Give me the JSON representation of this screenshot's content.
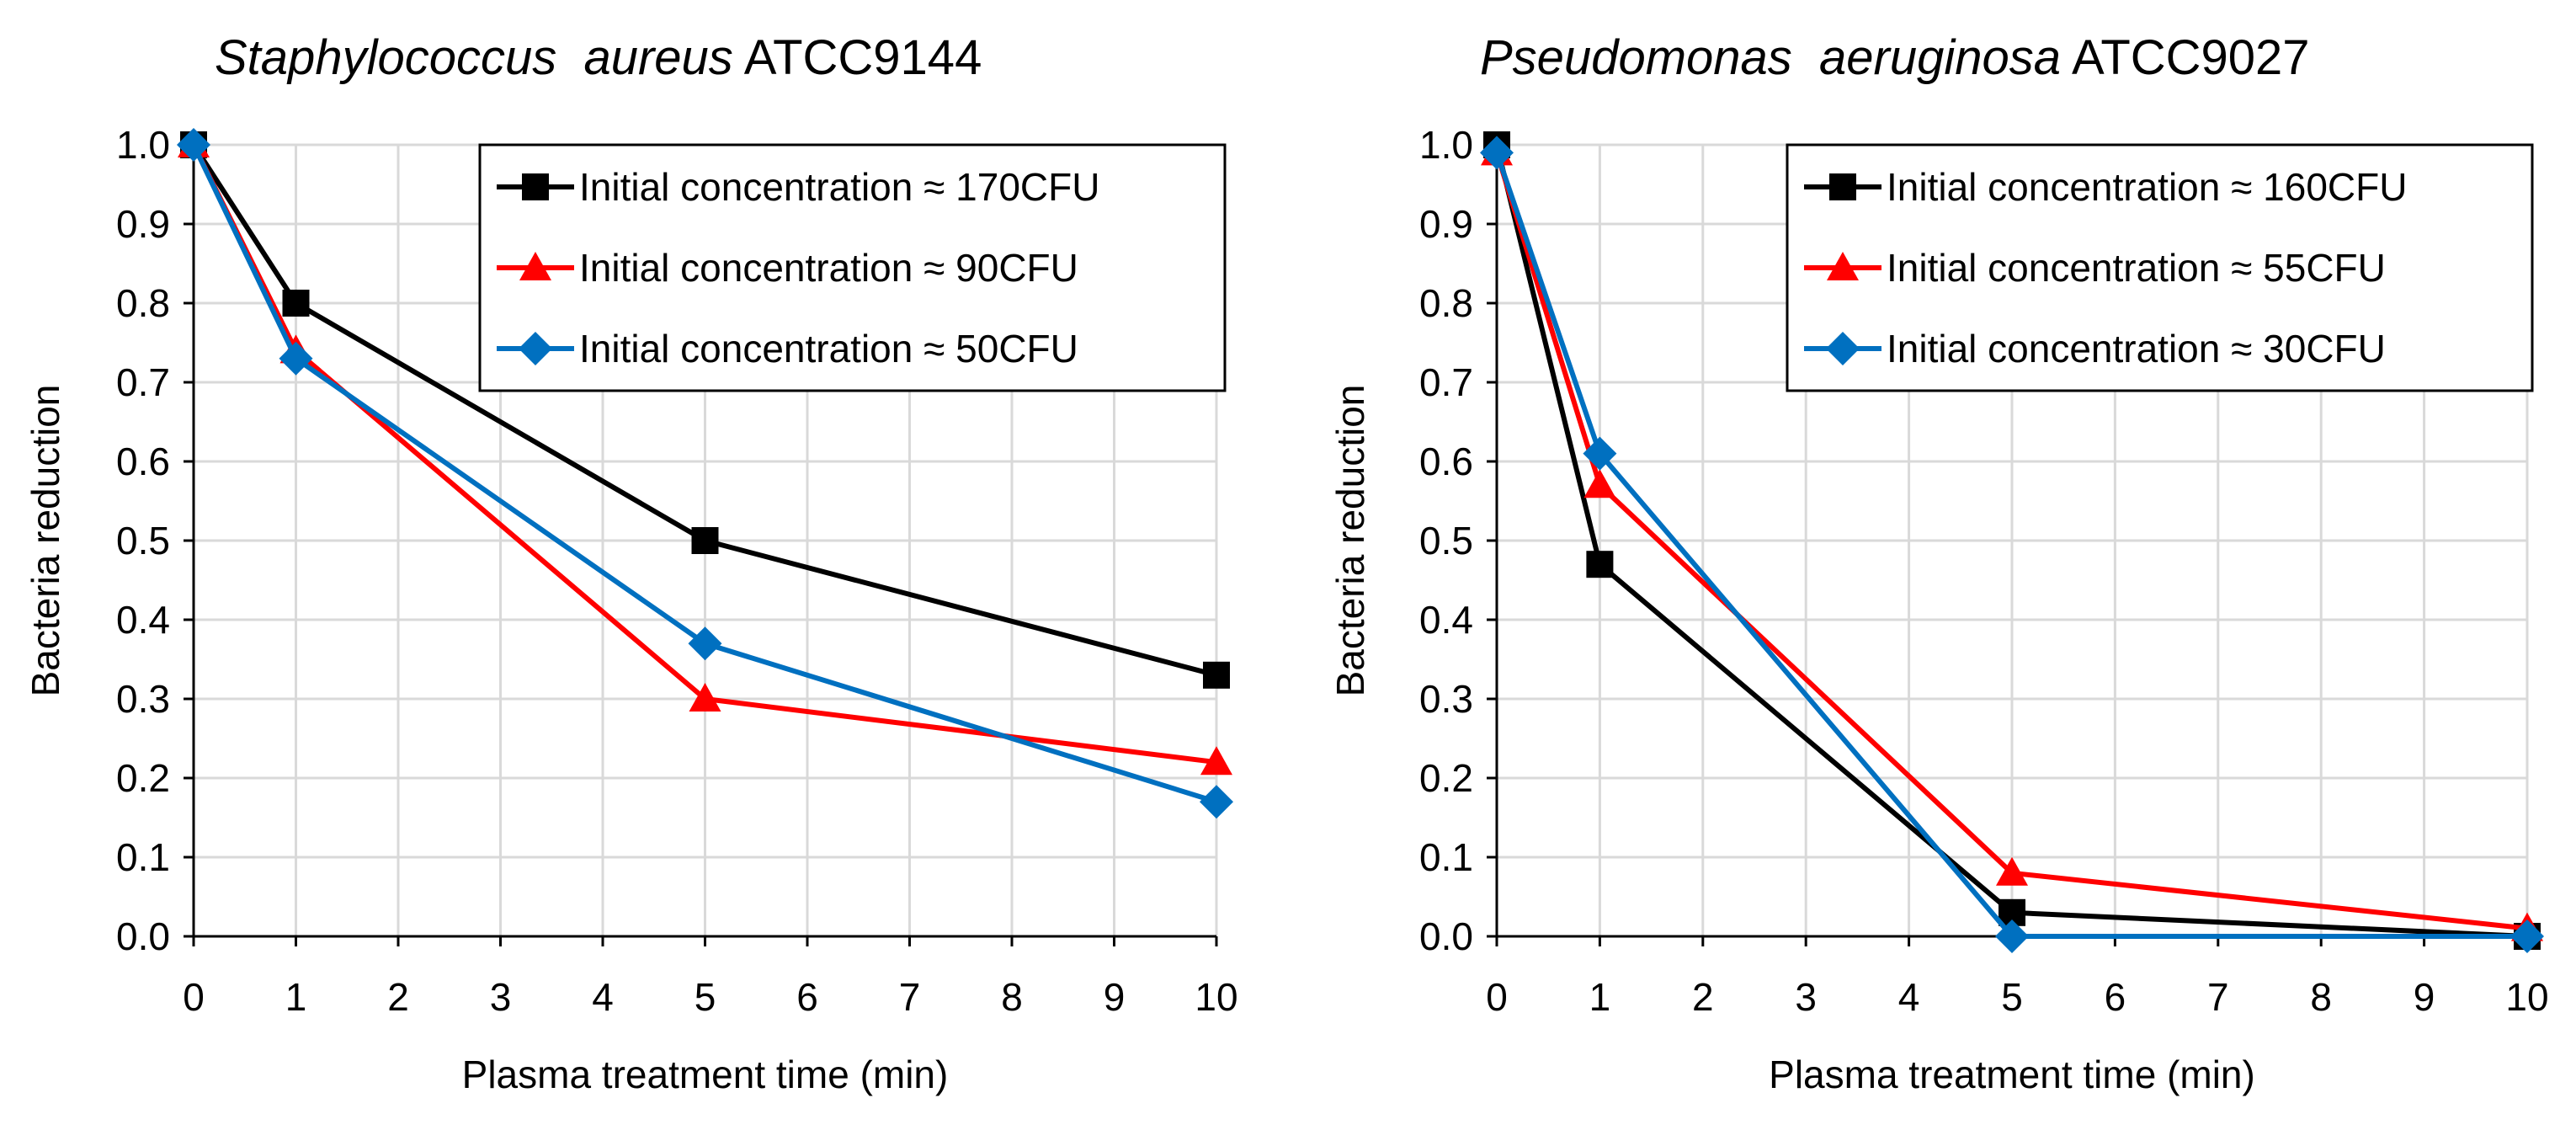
{
  "chart_data": [
    {
      "type": "line",
      "title_italic": "Staphylococcus  aureus",
      "title_rest": " ATCC9144",
      "xlabel": "Plasma treatment time (min)",
      "ylabel": "Bacteria reduction",
      "xlim": [
        0,
        10
      ],
      "ylim": [
        0,
        1
      ],
      "x_ticks": [
        "0",
        "1",
        "2",
        "3",
        "4",
        "5",
        "6",
        "7",
        "8",
        "9",
        "10"
      ],
      "y_ticks": [
        "0.0",
        "0.1",
        "0.2",
        "0.3",
        "0.4",
        "0.5",
        "0.6",
        "0.7",
        "0.8",
        "0.9",
        "1.0"
      ],
      "grid": true,
      "legend_position": "top-right",
      "x": [
        0,
        1,
        5,
        10
      ],
      "series": [
        {
          "name": "Initial concentration ≈ 170CFU",
          "color": "#000000",
          "marker": "square",
          "values": [
            1.0,
            0.8,
            0.5,
            0.33
          ]
        },
        {
          "name": "Initial concentration ≈ 90CFU",
          "color": "#ff0000",
          "marker": "triangle",
          "values": [
            1.0,
            0.74,
            0.3,
            0.22
          ]
        },
        {
          "name": "Initial concentration ≈ 50CFU",
          "color": "#0070c0",
          "marker": "diamond",
          "values": [
            1.0,
            0.73,
            0.37,
            0.17
          ]
        }
      ]
    },
    {
      "type": "line",
      "title_italic": "Pseudomonas  aeruginosa",
      "title_rest": " ATCC9027",
      "xlabel": "Plasma treatment time (min)",
      "ylabel": "Bacteria reduction",
      "xlim": [
        0,
        10
      ],
      "ylim": [
        0,
        1
      ],
      "x_ticks": [
        "0",
        "1",
        "2",
        "3",
        "4",
        "5",
        "6",
        "7",
        "8",
        "9",
        "10"
      ],
      "y_ticks": [
        "0.0",
        "0.1",
        "0.2",
        "0.3",
        "0.4",
        "0.5",
        "0.6",
        "0.7",
        "0.8",
        "0.9",
        "1.0"
      ],
      "grid": true,
      "legend_position": "top-right",
      "x": [
        0,
        1,
        5,
        10
      ],
      "series": [
        {
          "name": "Initial concentration ≈ 160CFU",
          "color": "#000000",
          "marker": "square",
          "values": [
            1.0,
            0.47,
            0.03,
            0.0
          ]
        },
        {
          "name": "Initial concentration ≈ 55CFU",
          "color": "#ff0000",
          "marker": "triangle",
          "values": [
            0.99,
            0.57,
            0.08,
            0.01
          ]
        },
        {
          "name": "Initial concentration ≈ 30CFU",
          "color": "#0070c0",
          "marker": "diamond",
          "values": [
            0.99,
            0.61,
            0.0,
            0.0
          ]
        }
      ]
    }
  ]
}
